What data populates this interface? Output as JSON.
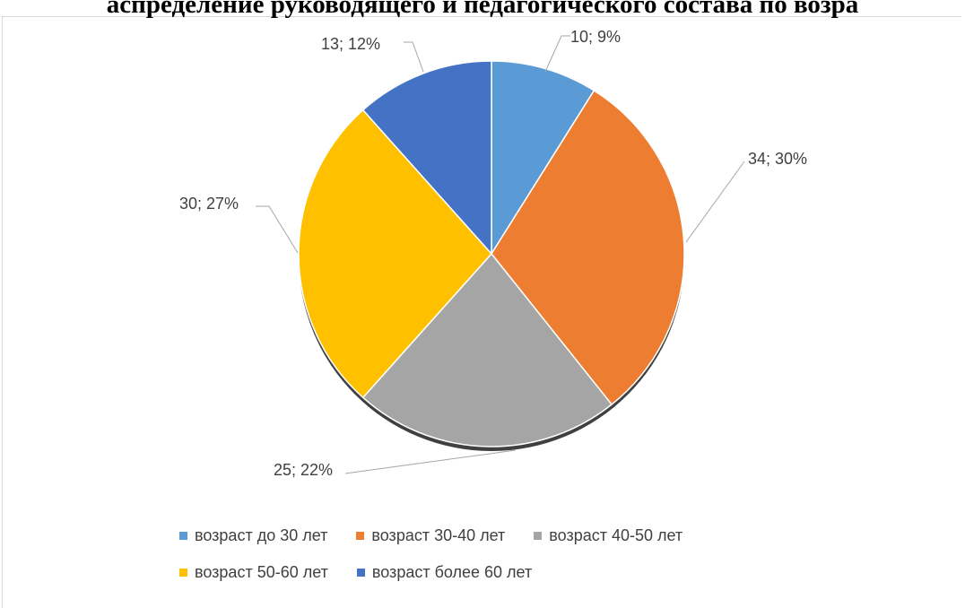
{
  "chart_data": {
    "type": "pie",
    "title": "аспределение руководящего и педагогического состава по возра",
    "slices": [
      {
        "name": "возраст до 30 лет",
        "value": 10,
        "percent": "9%",
        "label": "10; 9%",
        "color": "#5b9bd5"
      },
      {
        "name": "возраст 30-40 лет",
        "value": 34,
        "percent": "30%",
        "label": "34; 30%",
        "color": "#ed7d31"
      },
      {
        "name": "возраст 40-50 лет",
        "value": 25,
        "percent": "22%",
        "label": "25; 22%",
        "color": "#a5a5a5"
      },
      {
        "name": "возраст 50-60 лет",
        "value": 30,
        "percent": "27%",
        "label": "30; 27%",
        "color": "#ffc000"
      },
      {
        "name": "возраст более 60 лет",
        "value": 13,
        "percent": "12%",
        "label": "13; 12%",
        "color": "#4472c4"
      }
    ],
    "legend": {
      "position": "bottom"
    }
  }
}
